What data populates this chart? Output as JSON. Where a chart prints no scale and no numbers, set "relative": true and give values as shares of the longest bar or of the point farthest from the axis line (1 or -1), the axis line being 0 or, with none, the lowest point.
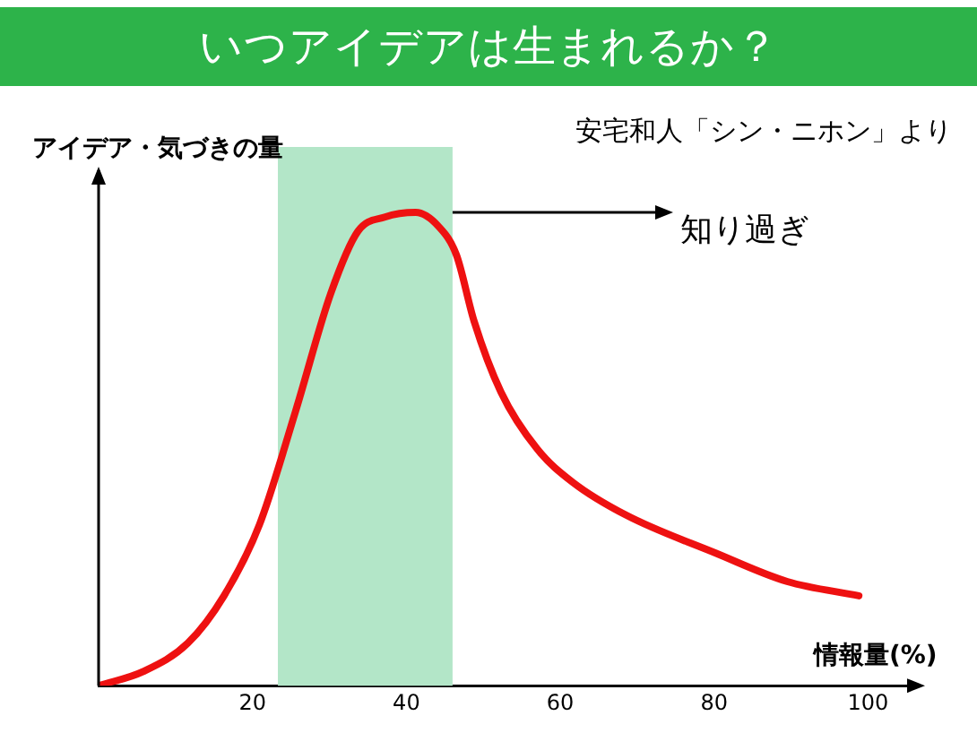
{
  "chart_data": {
    "type": "line",
    "title": "いつアイデアは生まれるか？",
    "ylabel": "アイデア・気づきの量",
    "xlabel": "情報量(%)",
    "annotations": [
      "安宅和人「シン・ニホン」より",
      "知り過ぎ"
    ],
    "relative": true,
    "series": [
      {
        "color": "#ee1111",
        "x": [
          0,
          5.8,
          11.6,
          16.3,
          20.9,
          25.6,
          30.2,
          33.7,
          37.2,
          41.2,
          44.2,
          46.5,
          48.8,
          52.3,
          57,
          61.6,
          68.6,
          80.2,
          89.5,
          98.8
        ],
        "values": [
          0,
          0.03,
          0.09,
          0.19,
          0.34,
          0.58,
          0.83,
          0.96,
          0.99,
          1,
          0.97,
          0.91,
          0.77,
          0.62,
          0.5,
          0.43,
          0.36,
          0.28,
          0.22,
          0.19
        ]
      }
    ],
    "xlim": [
      0,
      106
    ],
    "xticks": [
      20,
      40,
      60,
      80,
      100
    ],
    "bands": [
      {
        "axis": "x",
        "from": 23.3,
        "to": 46,
        "color": "#b3e6c8"
      }
    ],
    "grid": false,
    "legend": false,
    "tick_labels": "x",
    "marker": "none",
    "line_style": "solid"
  }
}
